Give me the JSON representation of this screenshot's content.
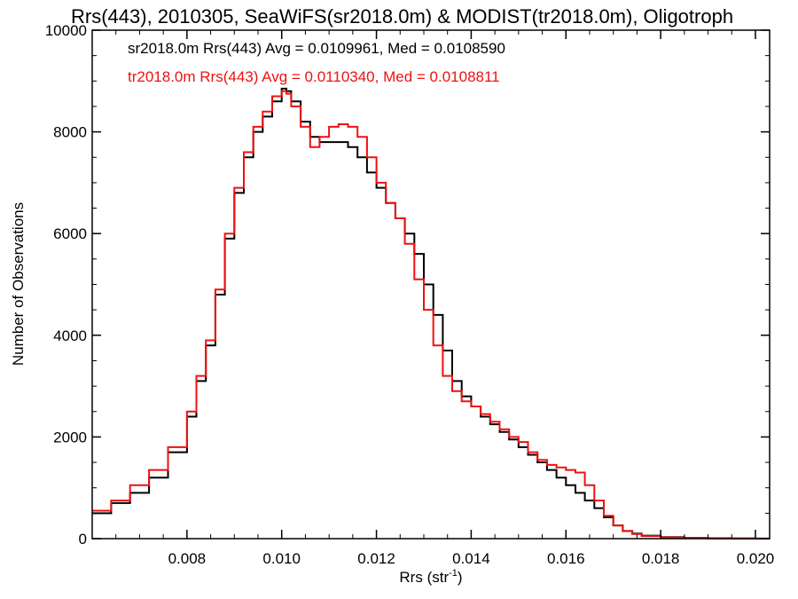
{
  "chart_data": {
    "type": "line",
    "title": "Rrs(443), 2010305, SeaWiFS(sr2018.0m) & MODIST(tr2018.0m), Oligotroph",
    "xlabel": "Rrs (str",
    "xlabel_sup": "-1",
    "xlabel_close": ")",
    "ylabel": "Number of Observations",
    "xlim": [
      0.006,
      0.0203
    ],
    "ylim": [
      0,
      10000
    ],
    "x_ticks": [
      0.008,
      0.01,
      0.012,
      0.014,
      0.016,
      0.018,
      0.02
    ],
    "x_tick_labels": [
      "0.008",
      "0.010",
      "0.012",
      "0.014",
      "0.016",
      "0.018",
      "0.020"
    ],
    "y_ticks": [
      0,
      2000,
      4000,
      6000,
      8000,
      10000
    ],
    "y_tick_labels": [
      "0",
      "2000",
      "4000",
      "6000",
      "8000",
      "10000"
    ],
    "annotations": [
      {
        "text": "sr2018.0m Rrs(443) Avg = 0.0109961, Med = 0.0108590",
        "color": "#000000"
      },
      {
        "text": "tr2018.0m Rrs(443) Avg = 0.0110340, Med = 0.0108811",
        "color": "#ee1111"
      }
    ],
    "series": [
      {
        "color": "#000000",
        "x": [
          0.006,
          0.0064,
          0.0068,
          0.0072,
          0.0076,
          0.008,
          0.0082,
          0.0084,
          0.0086,
          0.0088,
          0.009,
          0.0092,
          0.0094,
          0.0096,
          0.0098,
          0.01,
          0.0101,
          0.0102,
          0.0104,
          0.0106,
          0.0108,
          0.011,
          0.0112,
          0.0114,
          0.0116,
          0.0118,
          0.012,
          0.0122,
          0.0124,
          0.0126,
          0.0128,
          0.013,
          0.0132,
          0.0134,
          0.0136,
          0.0138,
          0.014,
          0.0142,
          0.0144,
          0.0146,
          0.0148,
          0.015,
          0.0152,
          0.0154,
          0.0156,
          0.0158,
          0.016,
          0.0162,
          0.0164,
          0.0166,
          0.0168,
          0.017,
          0.0172,
          0.0174,
          0.0176,
          0.018,
          0.0185,
          0.019,
          0.0195,
          0.02,
          0.0203
        ],
        "y": [
          500,
          700,
          900,
          1200,
          1700,
          2400,
          3100,
          3800,
          4800,
          5900,
          6800,
          7500,
          8000,
          8300,
          8600,
          8850,
          8800,
          8600,
          8200,
          7900,
          7800,
          7800,
          7800,
          7700,
          7500,
          7200,
          6900,
          6600,
          6300,
          6000,
          5600,
          5000,
          4400,
          3700,
          3100,
          2800,
          2600,
          2400,
          2250,
          2100,
          1950,
          1800,
          1650,
          1500,
          1350,
          1200,
          1050,
          900,
          750,
          600,
          420,
          260,
          150,
          100,
          60,
          30,
          15,
          8,
          4,
          2,
          1
        ]
      },
      {
        "color": "#ee1111",
        "x": [
          0.006,
          0.0064,
          0.0068,
          0.0072,
          0.0076,
          0.008,
          0.0082,
          0.0084,
          0.0086,
          0.0088,
          0.009,
          0.0092,
          0.0094,
          0.0096,
          0.0098,
          0.01,
          0.0101,
          0.0102,
          0.0104,
          0.0106,
          0.0108,
          0.011,
          0.0112,
          0.0114,
          0.0116,
          0.0118,
          0.012,
          0.0122,
          0.0124,
          0.0126,
          0.0128,
          0.013,
          0.0132,
          0.0134,
          0.0136,
          0.0138,
          0.014,
          0.0142,
          0.0144,
          0.0146,
          0.0148,
          0.015,
          0.0152,
          0.0154,
          0.0156,
          0.0158,
          0.016,
          0.0162,
          0.0164,
          0.0166,
          0.0168,
          0.017,
          0.0172,
          0.0174,
          0.0176,
          0.018,
          0.0185,
          0.019,
          0.0195,
          0.02,
          0.0203
        ],
        "y": [
          550,
          750,
          1050,
          1350,
          1800,
          2500,
          3200,
          3900,
          4900,
          6000,
          6900,
          7600,
          8100,
          8400,
          8700,
          8800,
          8750,
          8500,
          8100,
          7700,
          7900,
          8100,
          8150,
          8100,
          7900,
          7500,
          7000,
          6600,
          6300,
          5800,
          5100,
          4500,
          3800,
          3200,
          2900,
          2700,
          2600,
          2450,
          2300,
          2150,
          2000,
          1900,
          1700,
          1550,
          1450,
          1400,
          1350,
          1300,
          1050,
          750,
          450,
          260,
          150,
          90,
          50,
          25,
          12,
          6,
          3,
          2,
          1
        ]
      }
    ]
  }
}
